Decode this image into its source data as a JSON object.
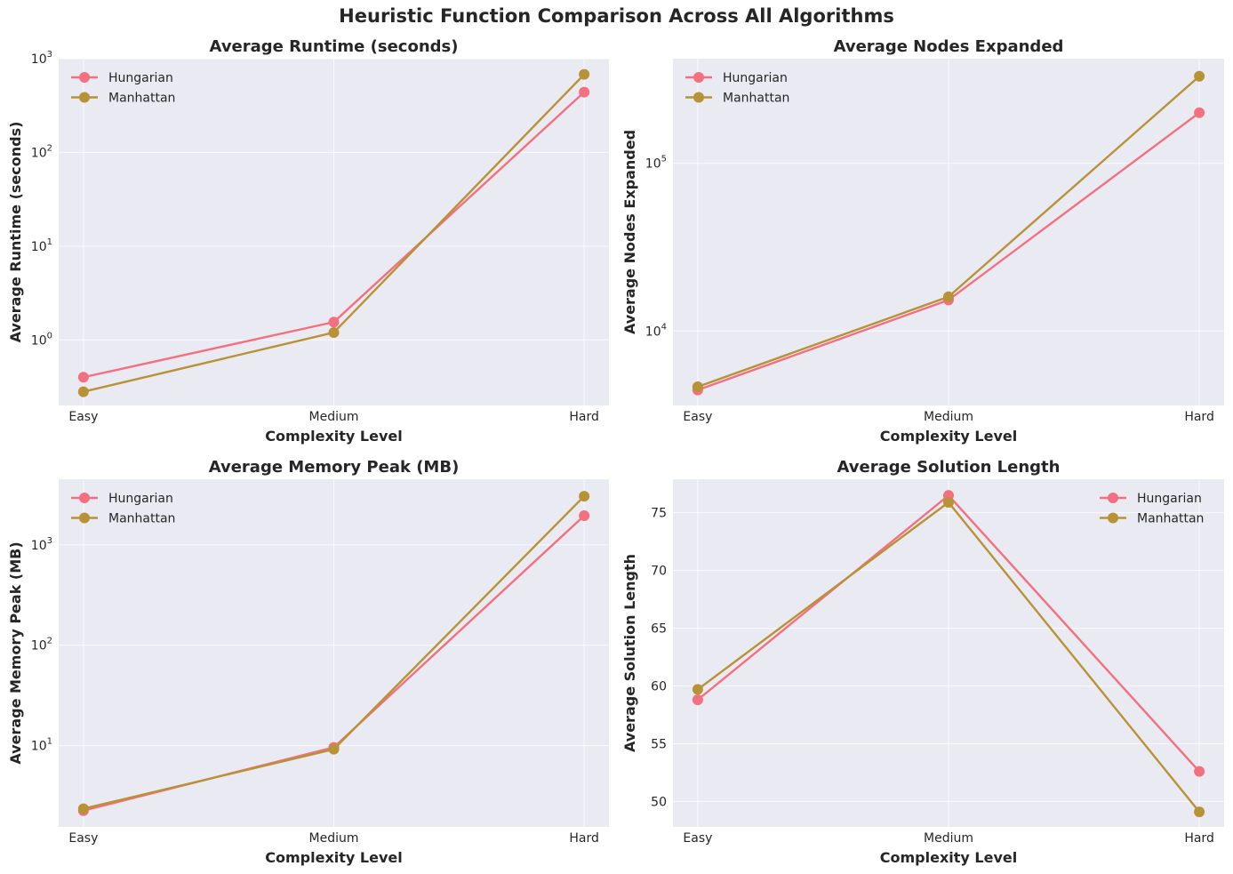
{
  "figure_title": "Heuristic Function Comparison Across All Algorithms",
  "colors": {
    "Hungarian": "#f2707f",
    "Manhattan": "#b89236",
    "plot_bg": "#eaeaf2",
    "grid": "#ffffff",
    "text": "#262626"
  },
  "chart_data": [
    {
      "type": "line",
      "title": "Average Runtime (seconds)",
      "xlabel": "Complexity Level",
      "ylabel": "Average Runtime (seconds)",
      "yscale": "log",
      "ylim": [
        0.2,
        1000
      ],
      "yticks": [
        1,
        10,
        100,
        1000
      ],
      "ytick_labels": [
        [
          "10",
          "0"
        ],
        [
          "10",
          "1"
        ],
        [
          "10",
          "2"
        ],
        [
          "10",
          "3"
        ]
      ],
      "categories": [
        "Easy",
        "Medium",
        "Hard"
      ],
      "legend": "top-left",
      "grid": true,
      "series": [
        {
          "name": "Hungarian",
          "values": [
            0.4,
            1.55,
            440
          ]
        },
        {
          "name": "Manhattan",
          "values": [
            0.28,
            1.2,
            680
          ]
        }
      ]
    },
    {
      "type": "line",
      "title": "Average Nodes Expanded",
      "xlabel": "Complexity Level",
      "ylabel": "Average Nodes Expanded",
      "yscale": "log",
      "ylim": [
        3600,
        420000
      ],
      "yticks": [
        10000,
        100000
      ],
      "ytick_labels": [
        [
          "10",
          "4"
        ],
        [
          "10",
          "5"
        ]
      ],
      "categories": [
        "Easy",
        "Medium",
        "Hard"
      ],
      "legend": "top-left",
      "grid": true,
      "series": [
        {
          "name": "Hungarian",
          "values": [
            4450,
            15300,
            200000
          ]
        },
        {
          "name": "Manhattan",
          "values": [
            4650,
            16000,
            330000
          ]
        }
      ]
    },
    {
      "type": "line",
      "title": "Average Memory Peak (MB)",
      "xlabel": "Complexity Level",
      "ylabel": "Average Memory Peak (MB)",
      "yscale": "log",
      "ylim": [
        1.55,
        4500
      ],
      "yticks": [
        10,
        100,
        1000
      ],
      "ytick_labels": [
        [
          "10",
          "1"
        ],
        [
          "10",
          "2"
        ],
        [
          "10",
          "3"
        ]
      ],
      "categories": [
        "Easy",
        "Medium",
        "Hard"
      ],
      "legend": "top-left",
      "grid": true,
      "series": [
        {
          "name": "Hungarian",
          "values": [
            2.25,
            9.6,
            1950
          ]
        },
        {
          "name": "Manhattan",
          "values": [
            2.35,
            9.2,
            3050
          ]
        }
      ]
    },
    {
      "type": "line",
      "title": "Average Solution Length",
      "xlabel": "Complexity Level",
      "ylabel": "Average Solution Length",
      "yscale": "linear",
      "ylim": [
        47.8,
        77.9
      ],
      "yticks": [
        50,
        55,
        60,
        65,
        70,
        75
      ],
      "ytick_labels": [
        [
          "50",
          ""
        ],
        [
          "55",
          ""
        ],
        [
          "60",
          ""
        ],
        [
          "65",
          ""
        ],
        [
          "70",
          ""
        ],
        [
          "75",
          ""
        ]
      ],
      "categories": [
        "Easy",
        "Medium",
        "Hard"
      ],
      "legend": "top-right",
      "grid": true,
      "series": [
        {
          "name": "Hungarian",
          "values": [
            58.8,
            76.5,
            52.6
          ]
        },
        {
          "name": "Manhattan",
          "values": [
            59.7,
            75.9,
            49.1
          ]
        }
      ]
    }
  ]
}
